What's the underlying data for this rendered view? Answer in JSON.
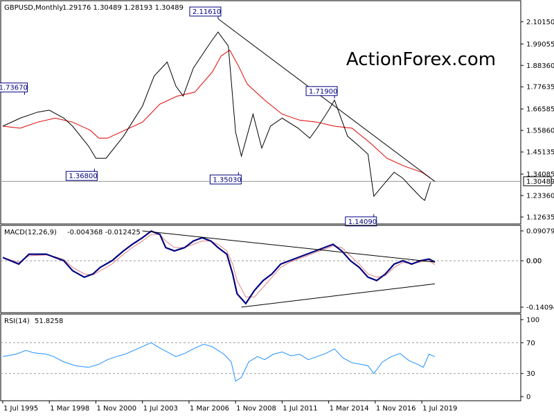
{
  "header": {
    "symbol": "GBPUSD,Monthly",
    "ohlc": "1.29176 1.30489 1.28193 1.30489"
  },
  "watermark": "ActionForex.com",
  "colors": {
    "price": "#000000",
    "ma": "#e00000",
    "macd": "#000080",
    "signal": "#e08080",
    "rsi": "#1e90ff",
    "label_border": "#000080",
    "label_text": "#000080",
    "grid": "#999999",
    "watermark": "#d2d2d2"
  },
  "chart_data": [
    {
      "type": "line",
      "name": "price",
      "x": [
        "1995-07",
        "1996-07",
        "1997-07",
        "1998-03",
        "1999-01",
        "1999-07",
        "2000-06",
        "2000-11",
        "2001-06",
        "2002-06",
        "2002-12",
        "2003-07",
        "2004-03",
        "2004-12",
        "2005-06",
        "2005-11",
        "2006-06",
        "2007-06",
        "2007-11",
        "2008-06",
        "2008-11",
        "2009-03",
        "2009-11",
        "2010-05",
        "2010-11",
        "2011-07",
        "2012-06",
        "2013-02",
        "2013-07",
        "2014-03",
        "2014-07",
        "2015-04",
        "2015-12",
        "2016-06",
        "2016-10",
        "2017-06",
        "2017-12",
        "2018-06",
        "2018-11",
        "2019-07",
        "2019-09",
        "2020-01"
      ],
      "y": [
        1.58,
        1.62,
        1.65,
        1.66,
        1.62,
        1.58,
        1.48,
        1.42,
        1.42,
        1.53,
        1.6,
        1.68,
        1.83,
        1.9,
        1.78,
        1.73,
        1.87,
        2.0,
        2.05,
        1.98,
        1.55,
        1.43,
        1.64,
        1.47,
        1.58,
        1.62,
        1.57,
        1.52,
        1.57,
        1.66,
        1.71,
        1.53,
        1.48,
        1.44,
        1.23,
        1.3,
        1.35,
        1.32,
        1.28,
        1.22,
        1.21,
        1.3
      ],
      "annotations": [
        {
          "label": "1.73670",
          "x": "1996-10",
          "y": 1.7367
        },
        {
          "label": "1.36800",
          "x": "2000-10",
          "y": 1.368
        },
        {
          "label": "2.11610",
          "x": "2007-11",
          "y": 2.1161
        },
        {
          "label": "1.35030",
          "x": "2009-01",
          "y": 1.3503
        },
        {
          "label": "1.71900",
          "x": "2014-07",
          "y": 1.719
        },
        {
          "label": "1.14090",
          "x": "2016-10",
          "y": 1.1409
        }
      ],
      "ma_series": {
        "x": [
          "1995-07",
          "1996-07",
          "1997-07",
          "1998-07",
          "1999-07",
          "2000-07",
          "2001-01",
          "2001-07",
          "2002-07",
          "2003-07",
          "2004-07",
          "2005-07",
          "2006-07",
          "2007-07",
          "2008-01",
          "2008-07",
          "2009-01",
          "2009-07",
          "2010-07",
          "2011-07",
          "2012-07",
          "2013-07",
          "2014-07",
          "2015-07",
          "2016-07",
          "2017-07",
          "2018-07",
          "2019-07",
          "2020-01"
        ],
        "y": [
          1.58,
          1.57,
          1.6,
          1.62,
          1.6,
          1.56,
          1.52,
          1.52,
          1.56,
          1.6,
          1.69,
          1.73,
          1.75,
          1.85,
          1.93,
          1.96,
          1.88,
          1.79,
          1.71,
          1.64,
          1.61,
          1.6,
          1.58,
          1.57,
          1.5,
          1.42,
          1.38,
          1.35,
          1.32
        ]
      },
      "trendline": {
        "x": [
          "2007-11",
          "2020-04"
        ],
        "y": [
          2.1161,
          1.304
        ]
      },
      "current_level": "1.30489",
      "y_ticks": [
        "2.10150",
        "1.99055",
        "1.88360",
        "1.77635",
        "1.66585",
        "1.55860",
        "1.45135",
        "1.34085",
        "1.23360",
        "1.12635"
      ],
      "ylim": [
        1.1264,
        2.1407
      ]
    },
    {
      "type": "line",
      "name": "MACD(12,26,9)",
      "values_label": "-0.004368 -0.012425",
      "x": [
        "1995-07",
        "1996-06",
        "1997-01",
        "1998-01",
        "1998-07",
        "1999-01",
        "1999-07",
        "2000-03",
        "2000-09",
        "2001-02",
        "2001-10",
        "2002-06",
        "2002-12",
        "2003-07",
        "2004-01",
        "2004-07",
        "2004-11",
        "2005-05",
        "2005-12",
        "2006-06",
        "2006-12",
        "2007-06",
        "2007-11",
        "2008-05",
        "2008-09",
        "2008-12",
        "2009-06",
        "2009-12",
        "2010-06",
        "2010-12",
        "2011-06",
        "2011-12",
        "2012-06",
        "2012-12",
        "2013-06",
        "2013-12",
        "2014-06",
        "2014-12",
        "2015-06",
        "2015-12",
        "2016-06",
        "2016-12",
        "2017-06",
        "2017-12",
        "2018-06",
        "2018-12",
        "2019-06",
        "2019-12",
        "2020-04"
      ],
      "y": [
        0.01,
        -0.01,
        0.02,
        0.02,
        0.01,
        0.0,
        -0.03,
        -0.05,
        -0.04,
        -0.02,
        0.0,
        0.03,
        0.05,
        0.07,
        0.09,
        0.08,
        0.04,
        0.03,
        0.04,
        0.06,
        0.07,
        0.06,
        0.04,
        0.02,
        -0.04,
        -0.1,
        -0.13,
        -0.09,
        -0.06,
        -0.04,
        -0.01,
        0.0,
        0.01,
        0.02,
        0.03,
        0.04,
        0.05,
        0.03,
        0.0,
        -0.02,
        -0.05,
        -0.06,
        -0.04,
        -0.01,
        0.0,
        -0.01,
        0.0,
        0.005,
        -0.004
      ],
      "signal_y": [
        0.01,
        -0.005,
        0.015,
        0.018,
        0.012,
        0.004,
        -0.02,
        -0.04,
        -0.043,
        -0.03,
        -0.01,
        0.02,
        0.04,
        0.06,
        0.08,
        0.08,
        0.06,
        0.04,
        0.04,
        0.05,
        0.06,
        0.06,
        0.05,
        0.03,
        -0.01,
        -0.06,
        -0.11,
        -0.11,
        -0.08,
        -0.05,
        -0.02,
        -0.005,
        0.005,
        0.015,
        0.025,
        0.035,
        0.045,
        0.04,
        0.015,
        -0.01,
        -0.04,
        -0.05,
        -0.045,
        -0.02,
        -0.005,
        -0.008,
        -0.004,
        0.0,
        -0.012
      ],
      "trendlines": [
        {
          "x": [
            "2003-07",
            "2020-04"
          ],
          "y": [
            0.0908,
            -0.004
          ]
        },
        {
          "x": [
            "2009-03",
            "2020-04"
          ],
          "y": [
            -0.1409,
            -0.07
          ]
        }
      ],
      "y_ticks": [
        "0.090798",
        "0.00",
        "-0.14094"
      ],
      "current_value": "0.00",
      "ylim": [
        -0.1409,
        0.0908
      ]
    },
    {
      "type": "line",
      "name": "RSI(14)",
      "value_label": "51.8258",
      "x": [
        "1995-07",
        "1996-04",
        "1996-11",
        "1997-04",
        "1998-01",
        "1998-06",
        "1999-01",
        "1999-09",
        "2000-06",
        "2001-01",
        "2001-07",
        "2002-01",
        "2002-07",
        "2003-01",
        "2003-07",
        "2004-01",
        "2004-07",
        "2004-12",
        "2005-06",
        "2005-12",
        "2006-06",
        "2007-01",
        "2007-07",
        "2007-11",
        "2008-03",
        "2008-08",
        "2008-11",
        "2009-03",
        "2009-08",
        "2010-02",
        "2010-07",
        "2011-01",
        "2011-07",
        "2012-01",
        "2012-07",
        "2013-01",
        "2013-07",
        "2014-01",
        "2014-07",
        "2015-01",
        "2015-07",
        "2016-01",
        "2016-06",
        "2016-10",
        "2017-04",
        "2017-10",
        "2018-04",
        "2018-10",
        "2019-04",
        "2019-08",
        "2019-12",
        "2020-04"
      ],
      "y": [
        52,
        55,
        60,
        57,
        55,
        52,
        45,
        40,
        38,
        42,
        48,
        52,
        55,
        60,
        65,
        70,
        63,
        58,
        52,
        56,
        62,
        68,
        65,
        60,
        55,
        45,
        20,
        25,
        45,
        52,
        48,
        55,
        58,
        53,
        55,
        48,
        52,
        56,
        62,
        50,
        44,
        42,
        40,
        30,
        45,
        52,
        56,
        47,
        42,
        38,
        55,
        52
      ],
      "levels": [
        70,
        30
      ],
      "y_ticks": [
        "100",
        "70",
        "30",
        "0"
      ],
      "ylim": [
        0,
        100
      ]
    }
  ],
  "x_axis_labels": [
    "1 Jul 1995",
    "1 Mar 1998",
    "1 Nov 2000",
    "1 Jul 2003",
    "1 Mar 2006",
    "1 Nov 2008",
    "1 Jul 2011",
    "1 Mar 2014",
    "1 Nov 2016",
    "1 Jul 2019"
  ]
}
